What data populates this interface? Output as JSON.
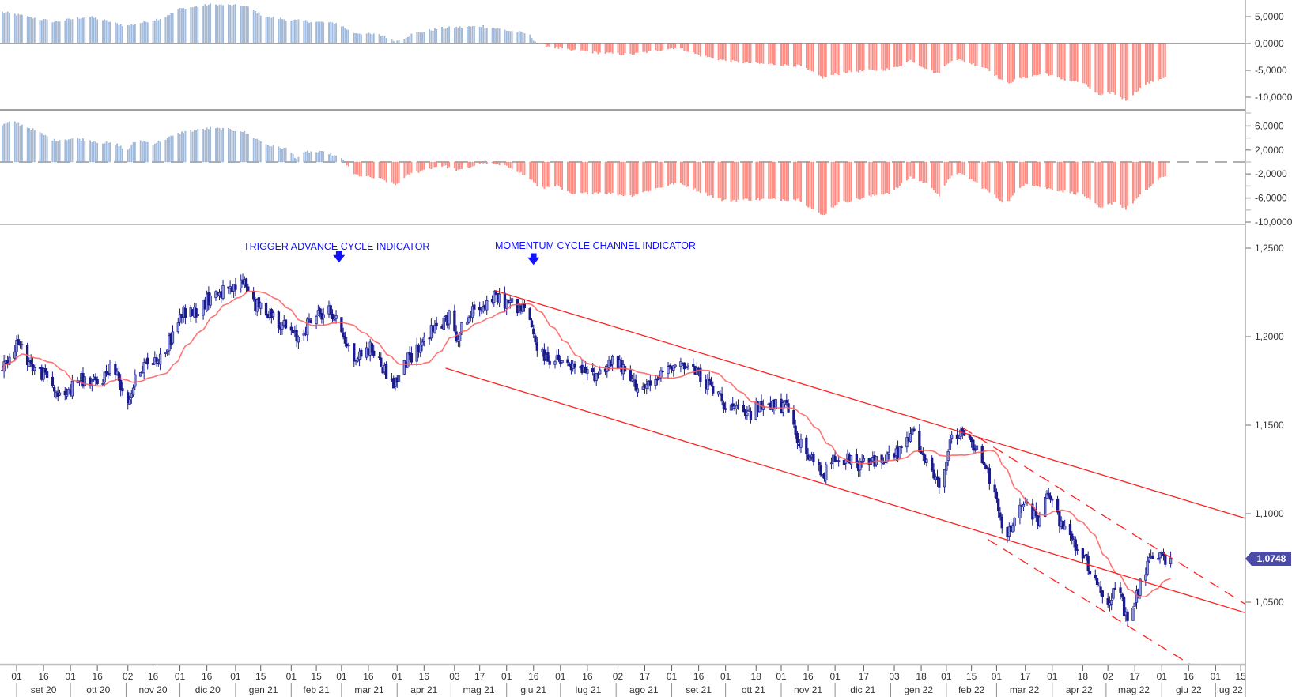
{
  "chart_data": {
    "type": "candlestick-with-indicators",
    "x_unit": "days since 2020-09-01",
    "colors": {
      "candle": "#1a1a8c",
      "candle_fill": "#8d9ad8",
      "ma": "#ff5a5a",
      "trendline": "#ff2020",
      "hist_pos": "#a9c1e0",
      "hist_pos_edge": "#7f9cc4",
      "hist_neg": "#ff9a90",
      "hist_neg_edge": "#ff5a50",
      "annotation": "#1010ff",
      "price_tag": "#4a4aa8"
    },
    "price": {
      "ylim": [
        1.02,
        1.265
      ],
      "ticks": [
        "1,2500",
        "1,2000",
        "1,1500",
        "1,1000",
        "1,0500"
      ],
      "tick_values": [
        1.25,
        1.2,
        1.15,
        1.1,
        1.05
      ],
      "last_price_label": "1,0748",
      "last_price": 1.0748,
      "ma_period": 20,
      "closes": [
        [
          -9,
          1.18
        ],
        [
          0,
          1.197
        ],
        [
          9,
          1.183
        ],
        [
          18,
          1.176
        ],
        [
          25,
          1.164
        ],
        [
          34,
          1.176
        ],
        [
          46,
          1.173
        ],
        [
          53,
          1.185
        ],
        [
          62,
          1.164
        ],
        [
          69,
          1.183
        ],
        [
          82,
          1.19
        ],
        [
          92,
          1.213
        ],
        [
          101,
          1.215
        ],
        [
          110,
          1.225
        ],
        [
          119,
          1.225
        ],
        [
          127,
          1.232
        ],
        [
          133,
          1.218
        ],
        [
          142,
          1.213
        ],
        [
          156,
          1.199
        ],
        [
          165,
          1.211
        ],
        [
          174,
          1.215
        ],
        [
          181,
          1.204
        ],
        [
          188,
          1.187
        ],
        [
          197,
          1.194
        ],
        [
          210,
          1.173
        ],
        [
          218,
          1.187
        ],
        [
          229,
          1.201
        ],
        [
          241,
          1.211
        ],
        [
          245,
          1.201
        ],
        [
          255,
          1.215
        ],
        [
          266,
          1.222
        ],
        [
          278,
          1.218
        ],
        [
          285,
          1.213
        ],
        [
          291,
          1.19
        ],
        [
          303,
          1.185
        ],
        [
          321,
          1.178
        ],
        [
          333,
          1.187
        ],
        [
          344,
          1.173
        ],
        [
          353,
          1.171
        ],
        [
          367,
          1.187
        ],
        [
          381,
          1.178
        ],
        [
          395,
          1.162
        ],
        [
          406,
          1.155
        ],
        [
          418,
          1.163
        ],
        [
          429,
          1.159
        ],
        [
          438,
          1.136
        ],
        [
          449,
          1.122
        ],
        [
          457,
          1.134
        ],
        [
          468,
          1.127
        ],
        [
          482,
          1.131
        ],
        [
          491,
          1.134
        ],
        [
          499,
          1.145
        ],
        [
          507,
          1.127
        ],
        [
          514,
          1.115
        ],
        [
          521,
          1.143
        ],
        [
          528,
          1.145
        ],
        [
          539,
          1.131
        ],
        [
          544,
          1.113
        ],
        [
          551,
          1.085
        ],
        [
          560,
          1.106
        ],
        [
          569,
          1.096
        ],
        [
          575,
          1.113
        ],
        [
          581,
          1.094
        ],
        [
          592,
          1.08
        ],
        [
          602,
          1.061
        ],
        [
          608,
          1.05
        ],
        [
          614,
          1.059
        ],
        [
          619,
          1.036
        ],
        [
          625,
          1.057
        ],
        [
          630,
          1.071
        ],
        [
          637,
          1.075
        ],
        [
          643,
          1.0748
        ]
      ],
      "trendlines": [
        {
          "name": "channel-upper",
          "style": "solid",
          "from": [
            266,
            1.2262
          ],
          "to": [
            685,
            1.0972
          ]
        },
        {
          "name": "channel-lower",
          "style": "solid",
          "from": [
            239,
            1.1822
          ],
          "to": [
            685,
            1.0439
          ]
        },
        {
          "name": "short-channel-upper",
          "style": "dashed",
          "from": [
            527,
            1.1486
          ],
          "to": [
            685,
            1.0486
          ]
        },
        {
          "name": "short-channel-lower",
          "style": "dashed",
          "from": [
            541,
            1.0855
          ],
          "to": [
            660,
            1.011
          ]
        }
      ]
    },
    "indicator1": {
      "ylim": [
        -12,
        8
      ],
      "ticks": [
        "5,0000",
        "0,0000",
        "-5,0000",
        "-10,0000"
      ],
      "tick_values": [
        5,
        0,
        -5,
        -10
      ],
      "values": [
        [
          -9,
          5.9
        ],
        [
          21,
          4.0
        ],
        [
          40,
          5.0
        ],
        [
          61,
          3.2
        ],
        [
          81,
          4.7
        ],
        [
          91,
          6.4
        ],
        [
          108,
          7.2
        ],
        [
          127,
          7.0
        ],
        [
          138,
          5.0
        ],
        [
          153,
          4.3
        ],
        [
          179,
          3.7
        ],
        [
          187,
          2.0
        ],
        [
          204,
          1.5
        ],
        [
          211,
          0.3
        ],
        [
          221,
          1.8
        ],
        [
          236,
          2.8
        ],
        [
          260,
          3.2
        ],
        [
          275,
          2.3
        ],
        [
          285,
          1.8
        ],
        [
          290,
          0
        ],
        [
          307,
          -1.2
        ],
        [
          317,
          -1.4
        ],
        [
          324,
          -1.7
        ],
        [
          342,
          -2.0
        ],
        [
          368,
          -0.7
        ],
        [
          381,
          -2.2
        ],
        [
          394,
          -3.1
        ],
        [
          407,
          -3.6
        ],
        [
          436,
          -4.1
        ],
        [
          449,
          -6.3
        ],
        [
          462,
          -5.3
        ],
        [
          488,
          -4.7
        ],
        [
          498,
          -3.1
        ],
        [
          513,
          -5.6
        ],
        [
          522,
          -2.7
        ],
        [
          541,
          -4.6
        ],
        [
          551,
          -7.5
        ],
        [
          558,
          -6.6
        ],
        [
          573,
          -5.5
        ],
        [
          581,
          -6.5
        ],
        [
          594,
          -7.3
        ],
        [
          604,
          -9.8
        ],
        [
          610,
          -9.0
        ],
        [
          618,
          -10.5
        ],
        [
          629,
          -7.5
        ],
        [
          642,
          -6.0
        ]
      ]
    },
    "indicator2": {
      "ylim": [
        -11,
        8
      ],
      "ticks": [
        "6,0000",
        "2,0000",
        "-2,0000",
        "-6,0000",
        "-10,0000"
      ],
      "tick_values": [
        6,
        2,
        -2,
        -6,
        -10
      ],
      "values": [
        [
          -9,
          6.0
        ],
        [
          -2,
          6.7
        ],
        [
          6,
          5.8
        ],
        [
          21,
          3.6
        ],
        [
          33,
          3.9
        ],
        [
          57,
          2.8
        ],
        [
          61,
          1.7
        ],
        [
          67,
          3.7
        ],
        [
          76,
          3.0
        ],
        [
          93,
          5.0
        ],
        [
          108,
          5.6
        ],
        [
          125,
          5.2
        ],
        [
          140,
          2.8
        ],
        [
          151,
          2.1
        ],
        [
          156,
          0.6
        ],
        [
          162,
          1.7
        ],
        [
          174,
          1.5
        ],
        [
          183,
          0.1
        ],
        [
          187,
          -2.0
        ],
        [
          204,
          -2.9
        ],
        [
          211,
          -3.8
        ],
        [
          219,
          -2.0
        ],
        [
          228,
          -1.2
        ],
        [
          236,
          -0.5
        ],
        [
          247,
          -1.4
        ],
        [
          260,
          0
        ],
        [
          277,
          -1.0
        ],
        [
          288,
          -3.2
        ],
        [
          291,
          -4.5
        ],
        [
          300,
          -3.8
        ],
        [
          309,
          -5.4
        ],
        [
          324,
          -5.0
        ],
        [
          342,
          -5.6
        ],
        [
          368,
          -3.4
        ],
        [
          381,
          -4.9
        ],
        [
          394,
          -6.4
        ],
        [
          407,
          -6.2
        ],
        [
          436,
          -6.2
        ],
        [
          445,
          -8.2
        ],
        [
          449,
          -8.9
        ],
        [
          457,
          -6.9
        ],
        [
          488,
          -4.9
        ],
        [
          498,
          -2.5
        ],
        [
          509,
          -3.8
        ],
        [
          514,
          -5.6
        ],
        [
          522,
          -1.6
        ],
        [
          530,
          -2.5
        ],
        [
          551,
          -6.9
        ],
        [
          562,
          -3.4
        ],
        [
          573,
          -4.3
        ],
        [
          581,
          -4.7
        ],
        [
          594,
          -5.4
        ],
        [
          604,
          -7.8
        ],
        [
          612,
          -6.5
        ],
        [
          618,
          -7.8
        ],
        [
          634,
          -3.4
        ],
        [
          642,
          -1.8
        ]
      ]
    },
    "x_ticks": [
      [
        "01",
        0
      ],
      [
        "16",
        15
      ],
      [
        "01",
        30
      ],
      [
        "16",
        45
      ],
      [
        "02",
        62
      ],
      [
        "16",
        76
      ],
      [
        "01",
        91
      ],
      [
        "16",
        106
      ],
      [
        "01",
        122
      ],
      [
        "15",
        136
      ],
      [
        "01",
        153
      ],
      [
        "15",
        167
      ],
      [
        "01",
        181
      ],
      [
        "16",
        196
      ],
      [
        "01",
        212
      ],
      [
        "16",
        227
      ],
      [
        "03",
        244
      ],
      [
        "17",
        258
      ],
      [
        "01",
        273
      ],
      [
        "16",
        288
      ],
      [
        "01",
        303
      ],
      [
        "16",
        318
      ],
      [
        "02",
        335
      ],
      [
        "17",
        350
      ],
      [
        "01",
        365
      ],
      [
        "16",
        380
      ],
      [
        "01",
        395
      ],
      [
        "18",
        412
      ],
      [
        "01",
        426
      ],
      [
        "16",
        441
      ],
      [
        "01",
        456
      ],
      [
        "17",
        472
      ],
      [
        "03",
        489
      ],
      [
        "18",
        504
      ],
      [
        "01",
        518
      ],
      [
        "15",
        532
      ],
      [
        "01",
        546
      ],
      [
        "17",
        562
      ],
      [
        "01",
        577
      ],
      [
        "18",
        594
      ],
      [
        "02",
        608
      ],
      [
        "17",
        623
      ],
      [
        "01",
        638
      ],
      [
        "16",
        653
      ],
      [
        "01",
        668
      ],
      [
        "15",
        682
      ]
    ],
    "months": [
      [
        "set 20",
        0,
        30
      ],
      [
        "ott 20",
        30,
        61
      ],
      [
        "nov 20",
        61,
        91
      ],
      [
        "dic 20",
        91,
        122
      ],
      [
        "gen 21",
        122,
        153
      ],
      [
        "feb 21",
        153,
        181
      ],
      [
        "mar 21",
        181,
        212
      ],
      [
        "apr 21",
        212,
        242
      ],
      [
        "mag 21",
        242,
        273
      ],
      [
        "giu 21",
        273,
        303
      ],
      [
        "lug 21",
        303,
        334
      ],
      [
        "ago 21",
        334,
        365
      ],
      [
        "set 21",
        365,
        395
      ],
      [
        "ott 21",
        395,
        426
      ],
      [
        "nov 21",
        426,
        456
      ],
      [
        "dic 21",
        456,
        487
      ],
      [
        "gen 22",
        487,
        518
      ],
      [
        "feb 22",
        518,
        546
      ],
      [
        "mar 22",
        546,
        577
      ],
      [
        "apr 22",
        577,
        607
      ],
      [
        "mag 22",
        607,
        638
      ],
      [
        "giu 22",
        638,
        668
      ],
      [
        "lug 22",
        668,
        684
      ]
    ]
  },
  "annotations": {
    "trigger": {
      "text": "TRIGGER ADVANCE CYCLE INDICATOR",
      "arrow": "🡇"
    },
    "momentum": {
      "text": "MOMENTUM CYCLE CHANNEL INDICATOR",
      "arrow": "🡇"
    }
  }
}
